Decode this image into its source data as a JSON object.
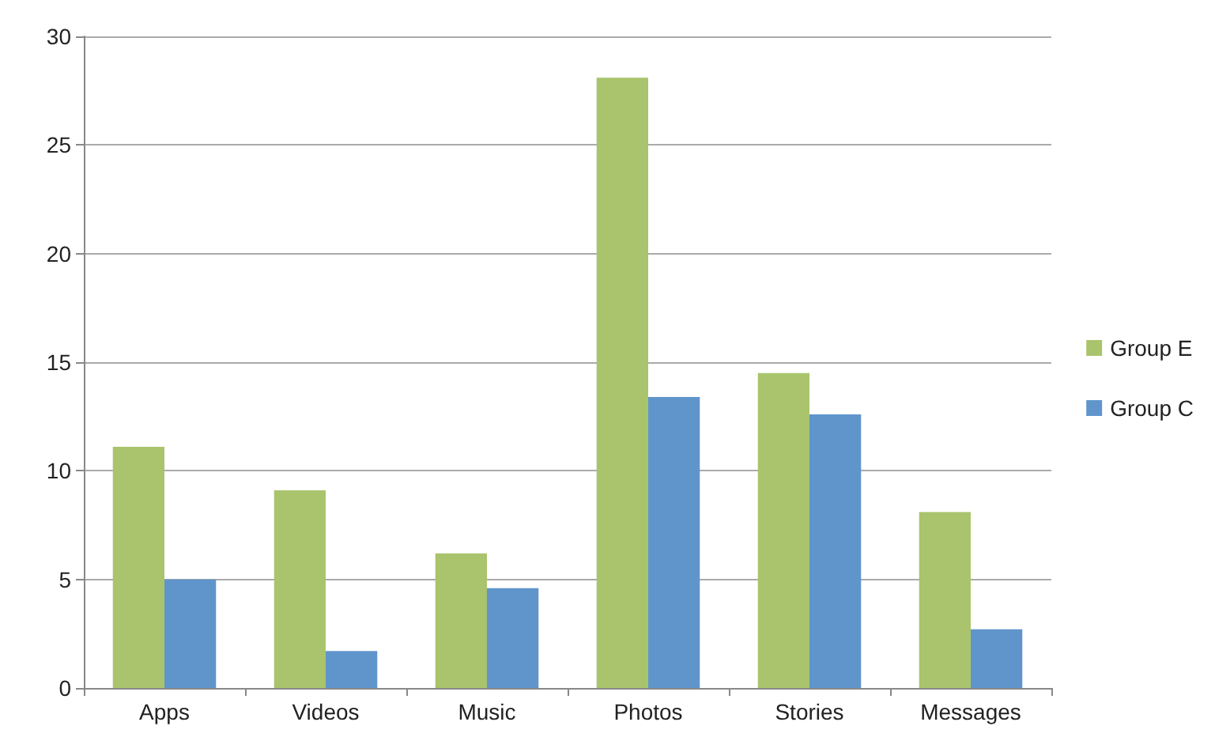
{
  "chart_data": {
    "type": "bar",
    "categories": [
      "Apps",
      "Videos",
      "Music",
      "Photos",
      "Stories",
      "Messages"
    ],
    "series": [
      {
        "name": "Group E",
        "color": "#a9c46c",
        "values": [
          11.1,
          9.1,
          6.2,
          28.1,
          14.5,
          8.1
        ]
      },
      {
        "name": "Group C",
        "color": "#6095cc",
        "values": [
          5,
          1.7,
          4.6,
          13.4,
          12.6,
          2.7
        ]
      }
    ],
    "ylim": [
      0,
      30
    ],
    "yticks": [
      0,
      5,
      10,
      15,
      20,
      25,
      30
    ],
    "grid": "y",
    "legend": "right"
  }
}
